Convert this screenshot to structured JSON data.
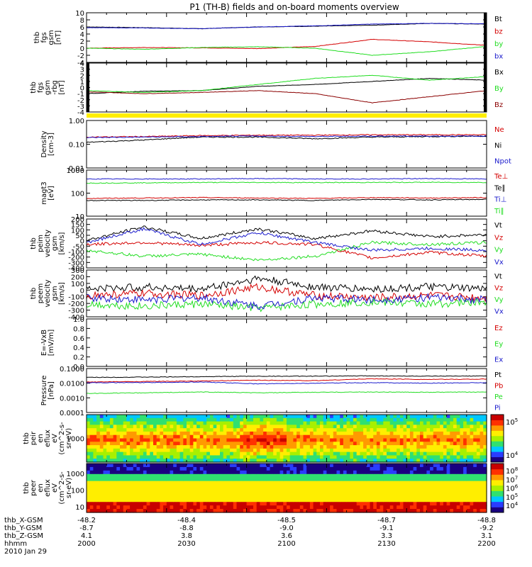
{
  "title": "P1 (TH-B) fields and on-board moments overview",
  "colors": {
    "black": "#000000",
    "red": "#d40000",
    "green": "#22dd22",
    "blue": "#1a1acc",
    "darkred": "#8b0000",
    "yellow": "#ffee00"
  },
  "chart_data": [
    {
      "type": "line",
      "panel": "fgs",
      "ylabel": [
        "thb",
        "fgs",
        "gsm",
        "[nT]"
      ],
      "yticks": [
        "-4",
        "-2",
        "0",
        "2",
        "4",
        "6",
        "8",
        "10"
      ],
      "ylim": [
        -4,
        10
      ],
      "series": [
        {
          "name": "Bt",
          "color": "black",
          "values": [
            6.0,
            5.8,
            5.5,
            6.0,
            6.2,
            6.5,
            7.0,
            6.8
          ]
        },
        {
          "name": "bz",
          "color": "red",
          "values": [
            0,
            0.2,
            0.1,
            -0.1,
            0.5,
            2.5,
            1.8,
            0.8
          ]
        },
        {
          "name": "by",
          "color": "green",
          "values": [
            0,
            -0.3,
            0.2,
            0.4,
            0,
            -2,
            -1,
            0.5
          ]
        },
        {
          "name": "bx",
          "color": "blue",
          "values": [
            5.8,
            5.7,
            5.5,
            6.0,
            6.3,
            6.8,
            7.0,
            6.9
          ]
        }
      ]
    },
    {
      "type": "line",
      "panel": "fgs_rbg",
      "ylabel": [
        "thb",
        "fgs",
        "gsm",
        "-rbg",
        "[nT]"
      ],
      "yticks": [
        "-4",
        "-3",
        "-2",
        "-1",
        "0",
        "1",
        "2",
        "3",
        "4"
      ],
      "ylim": [
        -4,
        4
      ],
      "series": [
        {
          "name": "Bx",
          "color": "black",
          "values": [
            -1,
            -0.6,
            -0.5,
            0.2,
            0.5,
            1.0,
            1.5,
            1.2
          ]
        },
        {
          "name": "By",
          "color": "green",
          "values": [
            -0.5,
            -0.8,
            -0.5,
            0.5,
            1.5,
            2.0,
            1.2,
            1.8
          ]
        },
        {
          "name": "Bz",
          "color": "darkred",
          "values": [
            -0.7,
            -1.0,
            -0.8,
            -0.5,
            -1.0,
            -2.5,
            -1.5,
            -0.5
          ]
        }
      ]
    },
    {
      "type": "line",
      "panel": "density",
      "ylabel": [
        "Density",
        "[cm-3]"
      ],
      "log": true,
      "yticks": [
        "0.01",
        "0.10",
        "1.00"
      ],
      "ylim": [
        0.01,
        1
      ],
      "series": [
        {
          "name": "Ne",
          "color": "red",
          "values": [
            0.2,
            0.21,
            0.23,
            0.24,
            0.24,
            0.25,
            0.25,
            0.25
          ]
        },
        {
          "name": "Ni",
          "color": "black",
          "values": [
            0.12,
            0.15,
            0.2,
            0.2,
            0.17,
            0.2,
            0.21,
            0.22
          ]
        },
        {
          "name": "Npot",
          "color": "blue",
          "values": [
            0.19,
            0.2,
            0.21,
            0.22,
            0.21,
            0.22,
            0.22,
            0.22
          ]
        }
      ]
    },
    {
      "type": "line",
      "panel": "temperature",
      "ylabel": [
        "magt3",
        "[eV]"
      ],
      "log": true,
      "yticks": [
        "10",
        "100",
        "1000"
      ],
      "ylim": [
        10,
        3000
      ],
      "series": [
        {
          "name": "Te⊥",
          "color": "red",
          "values": [
            90,
            95,
            100,
            95,
            90,
            100,
            95,
            100
          ]
        },
        {
          "name": "Te∥",
          "color": "black",
          "values": [
            70,
            70,
            75,
            75,
            70,
            80,
            75,
            80
          ]
        },
        {
          "name": "Ti⊥",
          "color": "blue",
          "values": [
            1000,
            1000,
            1000,
            1050,
            1000,
            1000,
            1050,
            1000
          ]
        },
        {
          "name": "Ti∥",
          "color": "green",
          "values": [
            600,
            620,
            650,
            650,
            640,
            650,
            660,
            650
          ]
        }
      ]
    },
    {
      "type": "line",
      "panel": "peim_velocity",
      "ylabel": [
        "thb",
        "peim",
        "velocity",
        "gsm",
        "[km/s]"
      ],
      "yticks": [
        "-400",
        "-300",
        "-200",
        "-100",
        "-50",
        "0",
        "50",
        "100",
        "150",
        "200"
      ],
      "series": [
        {
          "name": "Vt",
          "color": "black",
          "values": [
            30,
            100,
            40,
            90,
            40,
            80,
            50,
            60
          ]
        },
        {
          "name": "Vz",
          "color": "red",
          "values": [
            10,
            20,
            5,
            20,
            10,
            -60,
            -30,
            -50
          ]
        },
        {
          "name": "Vy",
          "color": "green",
          "values": [
            -20,
            -50,
            -40,
            -70,
            -50,
            20,
            10,
            20
          ]
        },
        {
          "name": "Vx",
          "color": "blue",
          "values": [
            20,
            90,
            10,
            70,
            20,
            -20,
            -10,
            -20
          ]
        }
      ]
    },
    {
      "type": "line",
      "panel": "peem_velocity",
      "ylabel": [
        "thb",
        "peem",
        "velocity",
        "gsm",
        "[km/s]"
      ],
      "yticks": [
        "-400",
        "-300",
        "-200",
        "-100",
        "0",
        "100",
        "200",
        "300"
      ],
      "series": [
        {
          "name": "Vt",
          "color": "black",
          "values": [
            50,
            60,
            50,
            100,
            60,
            50,
            60,
            50
          ]
        },
        {
          "name": "Vz",
          "color": "red",
          "values": [
            20,
            30,
            20,
            60,
            20,
            10,
            20,
            10
          ]
        },
        {
          "name": "Vy",
          "color": "green",
          "values": [
            -20,
            -30,
            -20,
            -40,
            -20,
            -10,
            -20,
            -10
          ]
        },
        {
          "name": "Vx",
          "color": "blue",
          "values": [
            10,
            0,
            10,
            -30,
            10,
            0,
            10,
            0
          ]
        }
      ]
    },
    {
      "type": "line",
      "panel": "efield",
      "ylabel": [
        "E=-VxB",
        "[mV/m]"
      ],
      "yticks": [
        "0.0",
        "0.2",
        "0.4",
        "0.6",
        "0.8",
        "1.0"
      ],
      "ylim": [
        0,
        1
      ],
      "series": [
        {
          "name": "Ez",
          "color": "red",
          "values": []
        },
        {
          "name": "Ey",
          "color": "green",
          "values": []
        },
        {
          "name": "Ex",
          "color": "blue",
          "values": []
        }
      ]
    },
    {
      "type": "line",
      "panel": "pressure",
      "ylabel": [
        "Pressure",
        "[nPa]"
      ],
      "log": true,
      "yticks": [
        "0.0001",
        "0.0010",
        "0.0100",
        "0.1000"
      ],
      "ylim": [
        0.0001,
        0.1
      ],
      "series": [
        {
          "name": "Pt",
          "color": "black",
          "values": [
            0.025,
            0.026,
            0.028,
            0.03,
            0.03,
            0.032,
            0.03,
            0.031
          ]
        },
        {
          "name": "Pb",
          "color": "red",
          "values": [
            0.012,
            0.013,
            0.014,
            0.016,
            0.015,
            0.02,
            0.018,
            0.019
          ]
        },
        {
          "name": "Pe",
          "color": "green",
          "values": [
            0.002,
            0.0022,
            0.0025,
            0.0022,
            0.0024,
            0.0025,
            0.0024,
            0.0025
          ]
        },
        {
          "name": "Pi",
          "color": "blue",
          "values": [
            0.011,
            0.011,
            0.012,
            0.009,
            0.01,
            0.011,
            0.01,
            0.011
          ]
        }
      ]
    },
    {
      "type": "heatmap",
      "panel": "peir_en",
      "ylabel": [
        "thb",
        "peir",
        "en",
        "eflux",
        "eV",
        "(cm^2-s-",
        "sr-eV)"
      ],
      "yticks": [
        "1000"
      ],
      "cbar_ticks": [
        "10^4",
        "10^5"
      ]
    },
    {
      "type": "heatmap",
      "panel": "peer_en",
      "ylabel": [
        "thb",
        "peer",
        "en",
        "eflux",
        "eV",
        "(cm^2-s-",
        "sr-eV)"
      ],
      "yticks": [
        "10",
        "100",
        "1000"
      ],
      "cbar_ticks": [
        "10^4",
        "10^5",
        "10^6",
        "10^7",
        "10^8"
      ]
    }
  ],
  "xaxis": {
    "row_labels": [
      "thb_X-GSM",
      "thb_Y-GSM",
      "thb_Z-GSM",
      "hhmm",
      "2010 Jan 29"
    ],
    "columns": [
      [
        "-48.2",
        "-8.7",
        "4.1",
        "2000"
      ],
      [
        "-48.4",
        "-8.8",
        "3.8",
        "2030"
      ],
      [
        "-48.5",
        "-9.0",
        "3.6",
        "2100"
      ],
      [
        "-48.7",
        "-9.1",
        "3.3",
        "2130"
      ],
      [
        "-48.8",
        "-9.2",
        "3.1",
        "2200"
      ]
    ]
  }
}
